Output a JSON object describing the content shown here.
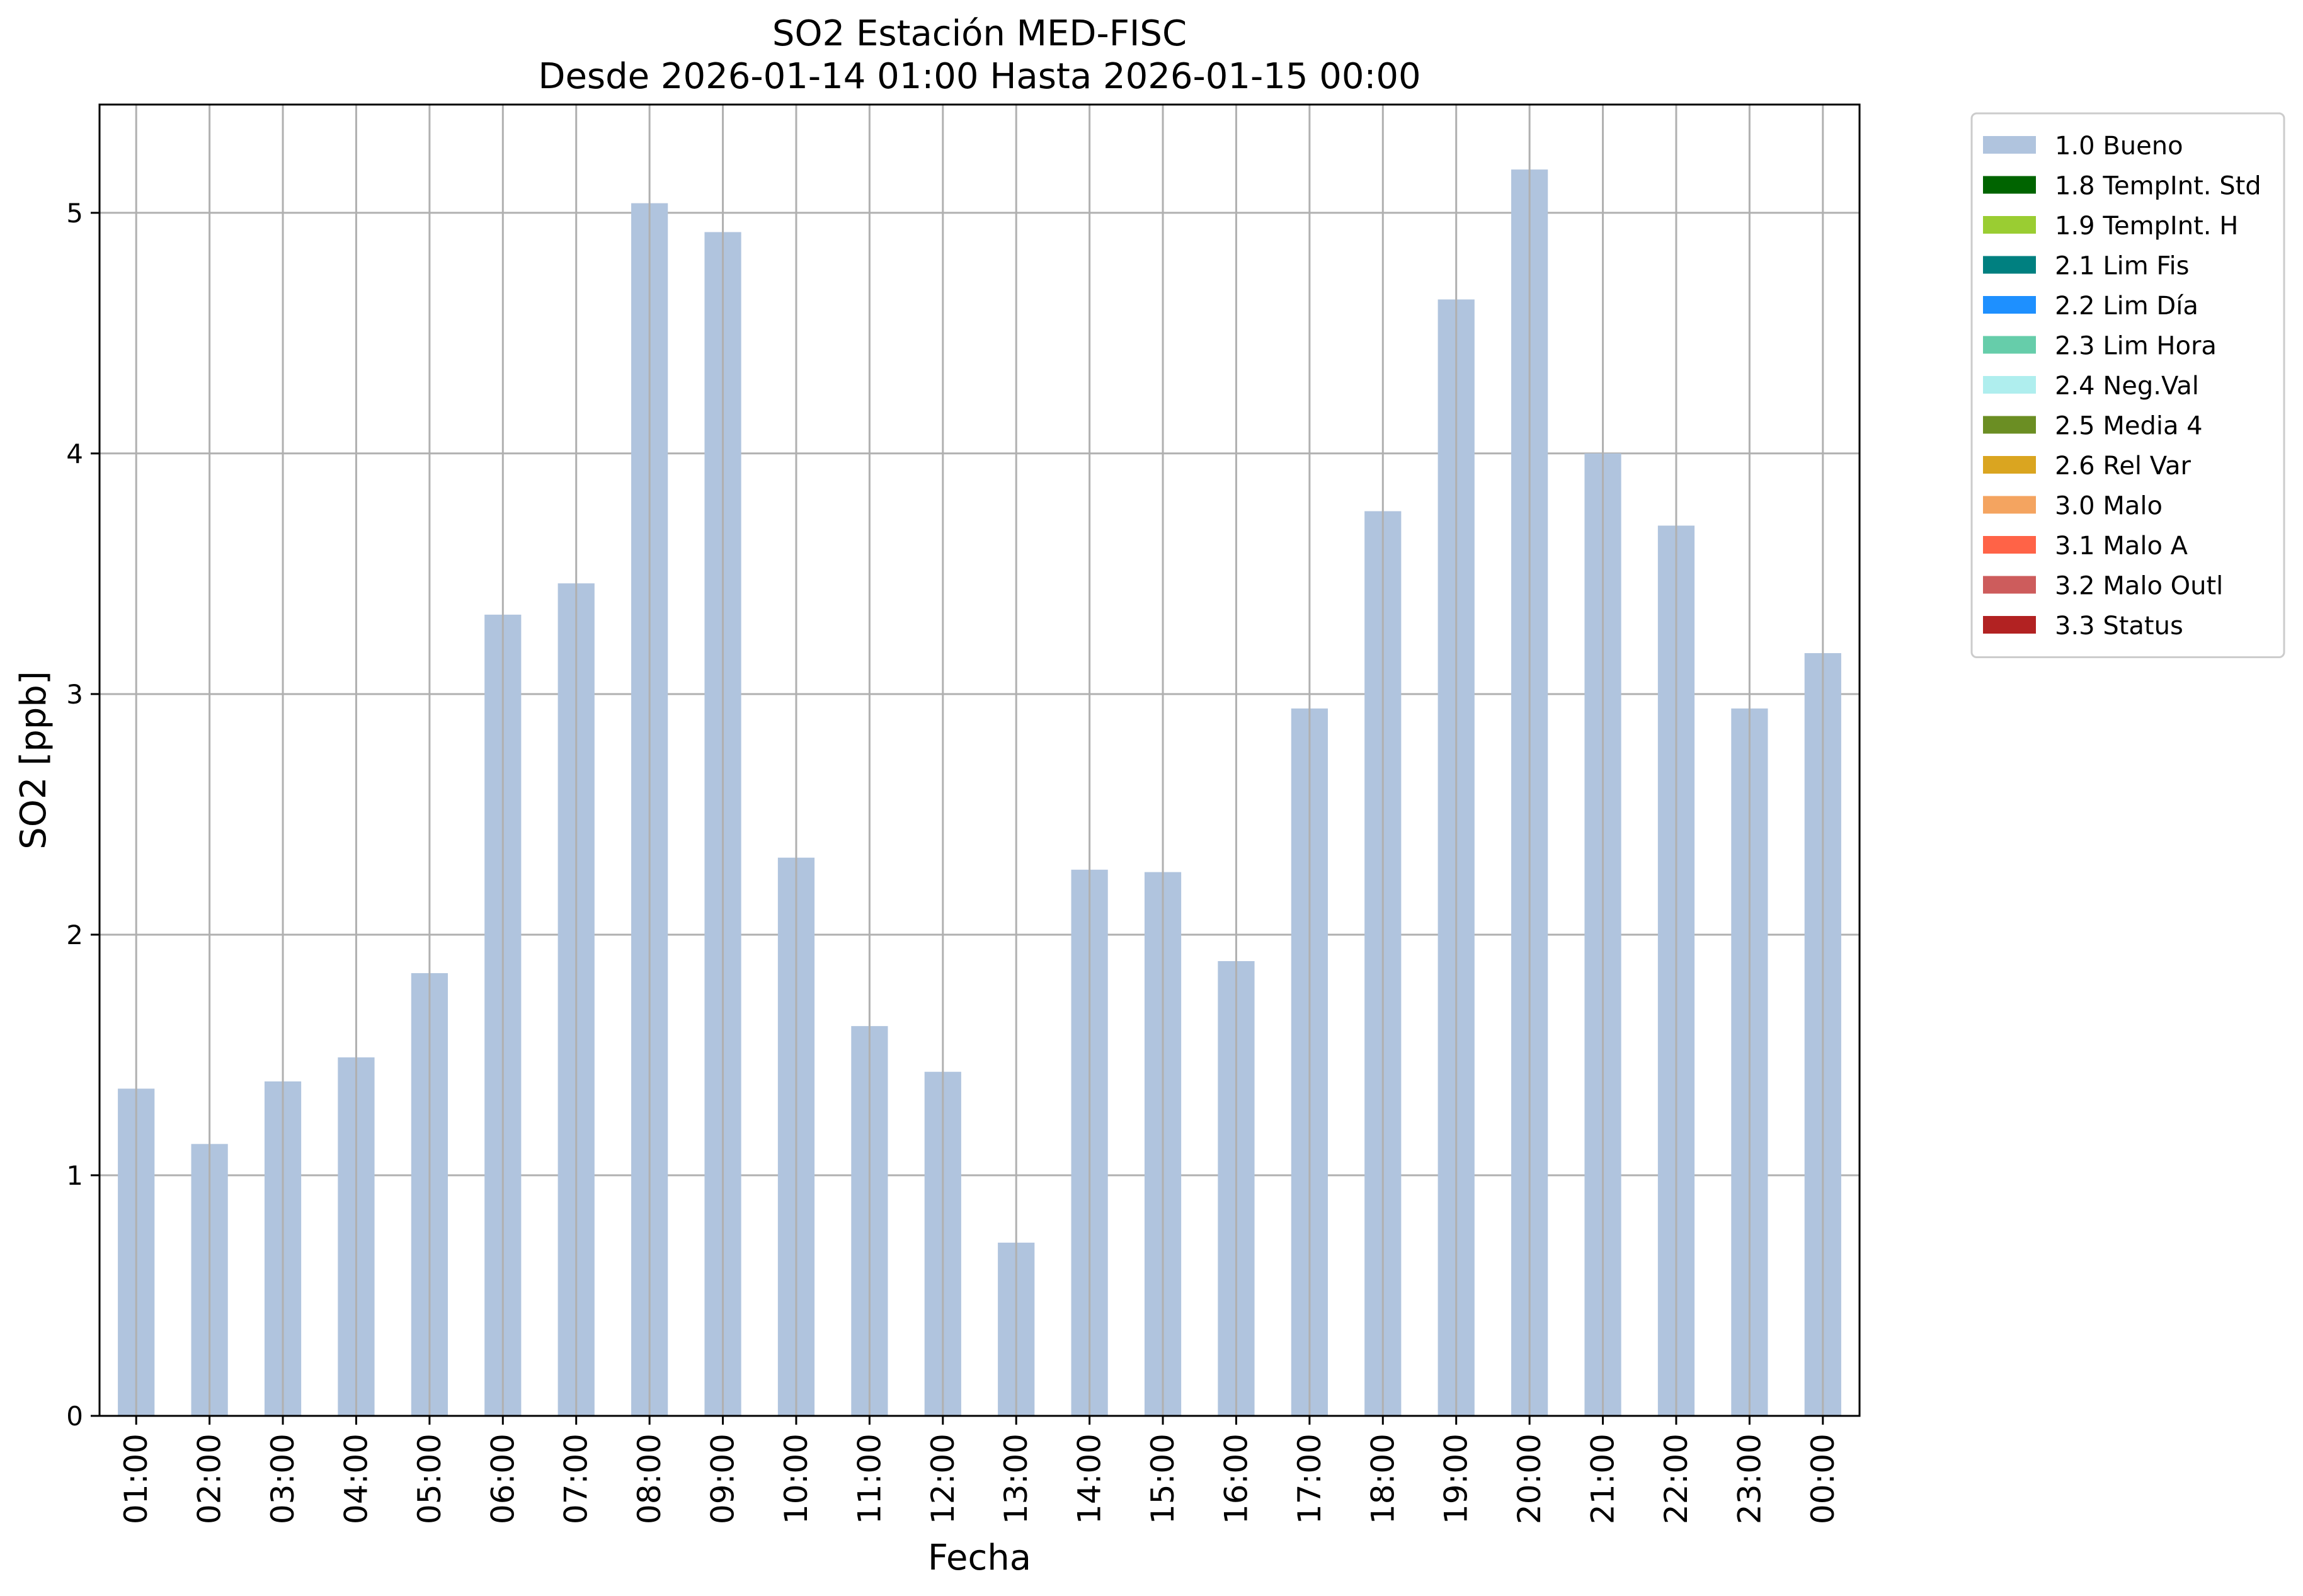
{
  "chart_data": {
    "type": "bar",
    "title": "SO2 Estación MED-FISC",
    "subtitle": "Desde 2026-01-14 01:00 Hasta 2026-01-15 00:00",
    "xlabel": "Fecha",
    "ylabel": "SO2 [ppb]",
    "ylim": [
      0,
      5.45
    ],
    "yticks": [
      "0",
      "1",
      "2",
      "3",
      "4",
      "5"
    ],
    "grid": true,
    "legend_position": "outside-top-right",
    "categories": [
      "01:00",
      "02:00",
      "03:00",
      "04:00",
      "05:00",
      "06:00",
      "07:00",
      "08:00",
      "09:00",
      "10:00",
      "11:00",
      "12:00",
      "13:00",
      "14:00",
      "15:00",
      "16:00",
      "17:00",
      "18:00",
      "19:00",
      "20:00",
      "21:00",
      "22:00",
      "23:00",
      "00:00"
    ],
    "series": [
      {
        "name": "1.0 Bueno",
        "color": "#b0c4de",
        "values": [
          1.36,
          1.13,
          1.39,
          1.49,
          1.84,
          3.33,
          3.46,
          5.04,
          4.92,
          2.32,
          1.62,
          1.43,
          0.72,
          2.27,
          2.26,
          1.89,
          2.94,
          3.76,
          4.64,
          5.18,
          4.0,
          3.7,
          2.94,
          3.17
        ]
      }
    ],
    "legend": [
      {
        "label": "1.0 Bueno",
        "color": "#b0c4de"
      },
      {
        "label": "1.8 TempInt. Std",
        "color": "#006400"
      },
      {
        "label": "1.9 TempInt. H",
        "color": "#9acd32"
      },
      {
        "label": "2.1 Lim Fis",
        "color": "#008080"
      },
      {
        "label": "2.2 Lim Día",
        "color": "#1e90ff"
      },
      {
        "label": "2.3 Lim Hora",
        "color": "#66cdaa"
      },
      {
        "label": "2.4 Neg.Val",
        "color": "#afeeee"
      },
      {
        "label": "2.5 Media 4",
        "color": "#6b8e23"
      },
      {
        "label": "2.6 Rel Var",
        "color": "#daa520"
      },
      {
        "label": "3.0 Malo",
        "color": "#f4a460"
      },
      {
        "label": "3.1 Malo A",
        "color": "#ff6347"
      },
      {
        "label": "3.2 Malo Outl",
        "color": "#cd5c5c"
      },
      {
        "label": "3.3 Status",
        "color": "#b22222"
      }
    ]
  }
}
